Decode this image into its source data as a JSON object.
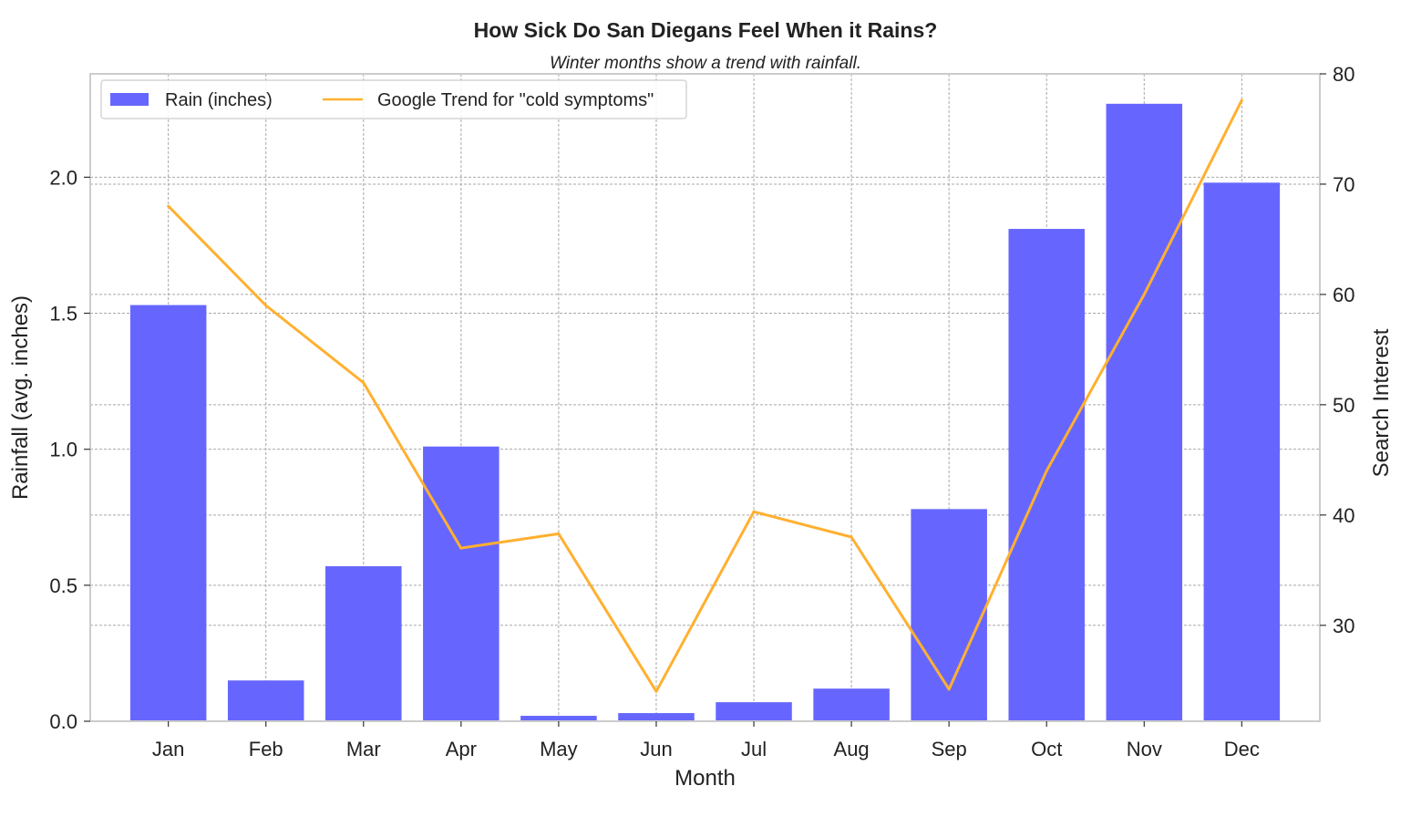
{
  "chart_data": {
    "type": "bar+line",
    "title": "How Sick Do San Diegans Feel When it Rains?",
    "subtitle": "Winter months show a trend with rainfall.",
    "xlabel": "Month",
    "ylabel": "Rainfall (avg. inches)",
    "ylabel_right": "Search Interest",
    "categories": [
      "Jan",
      "Feb",
      "Mar",
      "Apr",
      "May",
      "Jun",
      "Jul",
      "Aug",
      "Sep",
      "Oct",
      "Nov",
      "Dec"
    ],
    "series": [
      {
        "name": "Rain (inches)",
        "type": "bar",
        "axis": "left",
        "color": "#6666ff",
        "values": [
          1.53,
          0.15,
          0.57,
          1.01,
          0.02,
          0.03,
          0.07,
          0.12,
          0.78,
          1.81,
          2.27,
          1.98
        ]
      },
      {
        "name": "Google Trend for \"cold symptoms\"",
        "type": "line",
        "axis": "right",
        "color": "#ffb030",
        "values": [
          68,
          59,
          52,
          37,
          38.3,
          24,
          40.3,
          38,
          24.2,
          44,
          60,
          77.6
        ]
      }
    ],
    "ylim": [
      0,
      2.38
    ],
    "yticks": [
      "0.0",
      "0.5",
      "1.0",
      "1.5",
      "2.0"
    ],
    "ylim_right": [
      21.3,
      80
    ],
    "yticks_right": [
      "30",
      "40",
      "50",
      "60",
      "70",
      "80"
    ],
    "grid": true,
    "legend_placement": "top-left"
  }
}
